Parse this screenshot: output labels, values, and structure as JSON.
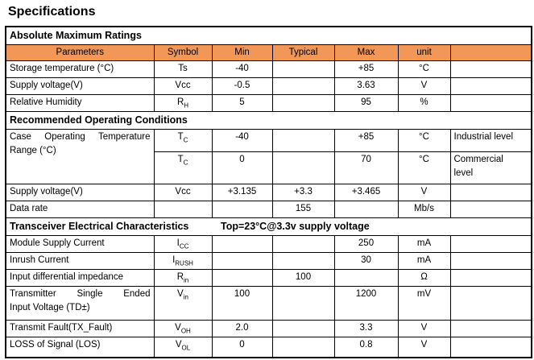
{
  "title": "Specifications",
  "colors": {
    "header_bg": "#F19758",
    "border": "#000000",
    "text": "#000000"
  },
  "table": {
    "columns": [
      "Parameters",
      "Symbol",
      "Min",
      "Typical",
      "Max",
      "unit",
      ""
    ],
    "sections": {
      "absolute": {
        "title": "Absolute Maximum Ratings"
      },
      "recommended": {
        "title": "Recommended Operating Conditions"
      },
      "transceiver": {
        "title": "Transceiver Electrical Characteristics",
        "condition": "Top=23°C@3.3v supply voltage"
      }
    },
    "rows": {
      "storage_temp": {
        "param": "Storage temperature (°C)",
        "sym": "Ts",
        "min": "-40",
        "max": "+85",
        "unit": "°C"
      },
      "supply_voltage_abs": {
        "param": "Supply voltage(V)",
        "sym": "Vcc",
        "min": "-0.5",
        "max": "3.63",
        "unit": "V"
      },
      "humidity": {
        "param": "Relative Humidity",
        "sym": "R",
        "sub": "H",
        "min": "5",
        "max": "95",
        "unit": "%"
      },
      "case_temp_industrial": {
        "param_lines": [
          "Case Operating Temperature",
          "Range (°C)"
        ],
        "sym": "T",
        "sub": "C",
        "min": "-40",
        "max": "+85",
        "unit": "°C",
        "note": "Industrial level"
      },
      "case_temp_commercial": {
        "sym": "T",
        "sub": "C",
        "min": "0",
        "max": "70",
        "unit": "°C",
        "note_lines": [
          "Commercial",
          "level"
        ]
      },
      "supply_voltage_rec": {
        "param": "Supply voltage(V)",
        "sym": "Vcc",
        "min": "+3.135",
        "typ": "+3.3",
        "max": "+3.465",
        "unit": "V"
      },
      "data_rate": {
        "param": "Data rate",
        "typ": "155",
        "unit": "Mb/s"
      },
      "module_supply_current": {
        "param": "Module Supply Current",
        "sym": "I",
        "sub": "CC",
        "max": "250",
        "unit": "mA"
      },
      "inrush_current": {
        "param": "Inrush Current",
        "sym": "I",
        "sub": "RUSH",
        "max": "30",
        "unit": "mA"
      },
      "input_impedance": {
        "param": "Input differential impedance",
        "sym": "R",
        "sub": "in",
        "typ": "100",
        "unit": "Ω"
      },
      "tx_input_voltage": {
        "param_lines": [
          "Transmitter Single Ended",
          "Input Voltage (TD±)"
        ],
        "sym": "V",
        "sub": "in",
        "min": "100",
        "max": "1200",
        "unit": "mV"
      },
      "transmit_fault": {
        "param": "Transmit Fault(TX_Fault)",
        "sym": "V",
        "sub": "OH",
        "min": "2.0",
        "max": "3.3",
        "unit": "V"
      },
      "los": {
        "param": "LOSS of Signal (LOS)",
        "sym": "V",
        "sub": "OL",
        "min": "0",
        "max": "0.8",
        "unit": "V"
      }
    }
  }
}
